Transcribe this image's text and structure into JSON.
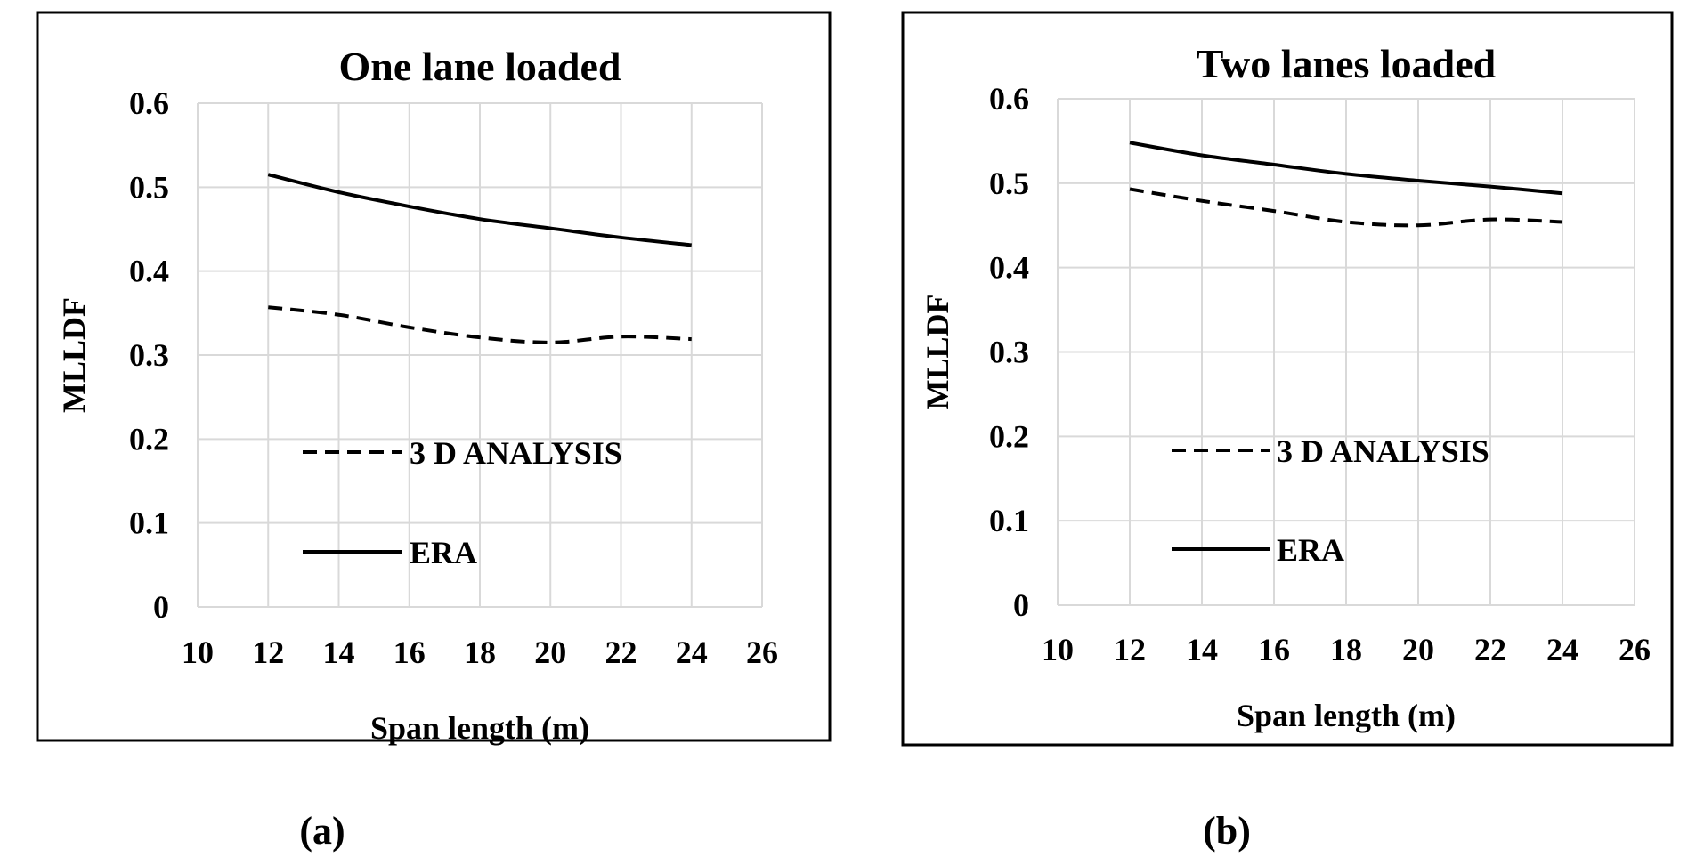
{
  "chart_data": [
    {
      "type": "line",
      "title": "One lane loaded",
      "xlabel": "Span length (m)",
      "ylabel": "MLLDF",
      "xlim": [
        10,
        26
      ],
      "ylim": [
        0,
        0.6
      ],
      "x_ticks": [
        "10",
        "12",
        "14",
        "16",
        "18",
        "20",
        "22",
        "24",
        "26"
      ],
      "y_ticks": [
        "0",
        "0.1",
        "0.2",
        "0.3",
        "0.4",
        "0.5",
        "0.6"
      ],
      "grid": true,
      "legend_placement": "lower-left inside",
      "x": [
        12,
        14,
        16,
        18,
        20,
        22,
        24
      ],
      "series": [
        {
          "name": "3 D ANALYSIS",
          "style": "dashed",
          "values": [
            0.357,
            0.348,
            0.333,
            0.321,
            0.315,
            0.322,
            0.319
          ]
        },
        {
          "name": "ERA",
          "style": "solid",
          "values": [
            0.515,
            0.494,
            0.477,
            0.462,
            0.451,
            0.44,
            0.431
          ]
        }
      ],
      "caption": "(a)"
    },
    {
      "type": "line",
      "title": "Two lanes loaded",
      "xlabel": "Span length (m)",
      "ylabel": "MLLDF",
      "xlim": [
        10,
        26
      ],
      "ylim": [
        0,
        0.6
      ],
      "x_ticks": [
        "10",
        "12",
        "14",
        "16",
        "18",
        "20",
        "22",
        "24",
        "26"
      ],
      "y_ticks": [
        "0",
        "0.1",
        "0.2",
        "0.3",
        "0.4",
        "0.5",
        "0.6"
      ],
      "grid": true,
      "legend_placement": "lower-left inside",
      "x": [
        12,
        14,
        16,
        18,
        20,
        22,
        24
      ],
      "series": [
        {
          "name": "3 D ANALYSIS",
          "style": "dashed",
          "values": [
            0.493,
            0.479,
            0.467,
            0.454,
            0.45,
            0.457,
            0.454
          ]
        },
        {
          "name": "ERA",
          "style": "solid",
          "values": [
            0.548,
            0.533,
            0.522,
            0.511,
            0.503,
            0.496,
            0.488
          ]
        }
      ],
      "caption": "(b)"
    }
  ],
  "colors": {
    "line": "#000000",
    "grid": "#d9d9d9",
    "frame": "#000000"
  }
}
